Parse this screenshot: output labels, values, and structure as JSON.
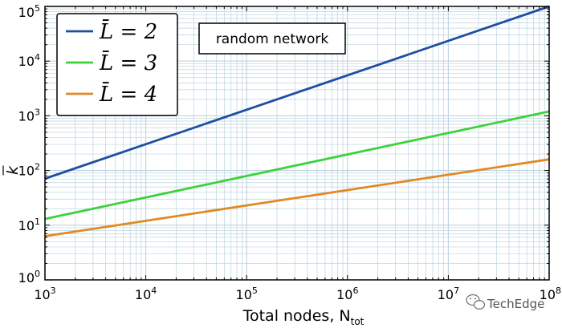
{
  "chart_data": {
    "type": "line",
    "title": "",
    "xlabel": "Total nodes, N",
    "xlabel_sub": "tot",
    "ylabel": "k",
    "xscale": "log",
    "yscale": "log",
    "xlim": [
      1000,
      100000000
    ],
    "ylim": [
      1,
      100000
    ],
    "xticks": [
      {
        "v": 1000,
        "base": "10",
        "exp": "3"
      },
      {
        "v": 10000,
        "base": "10",
        "exp": "4"
      },
      {
        "v": 100000,
        "base": "10",
        "exp": "5"
      },
      {
        "v": 1000000,
        "base": "10",
        "exp": "6"
      },
      {
        "v": 10000000,
        "base": "10",
        "exp": "7"
      },
      {
        "v": 100000000,
        "base": "10",
        "exp": "8"
      }
    ],
    "yticks": [
      {
        "v": 1,
        "base": "10",
        "exp": "0"
      },
      {
        "v": 10,
        "base": "10",
        "exp": "1"
      },
      {
        "v": 100,
        "base": "10",
        "exp": "2"
      },
      {
        "v": 1000,
        "base": "10",
        "exp": "3"
      },
      {
        "v": 10000,
        "base": "10",
        "exp": "4"
      },
      {
        "v": 100000,
        "base": "10",
        "exp": "5"
      }
    ],
    "grid": "major and minor",
    "legend_position": "top-left",
    "annotation": "random network",
    "series": [
      {
        "name": "L̄ = 2",
        "color": "#1f4ea3",
        "x": [
          1000,
          100000000
        ],
        "y": [
          71,
          100000
        ]
      },
      {
        "name": "L̄ = 3",
        "color": "#3cd23c",
        "x": [
          1000,
          100000000
        ],
        "y": [
          13,
          1200
        ]
      },
      {
        "name": "L̄ = 4",
        "color": "#e08a26",
        "x": [
          1000,
          100000000
        ],
        "y": [
          6.3,
          160
        ]
      }
    ]
  },
  "watermark": {
    "text": "TechEdge",
    "icon": "wechat-icon"
  },
  "colors": {
    "grid": "#bcd3df",
    "frame": "#000000"
  }
}
